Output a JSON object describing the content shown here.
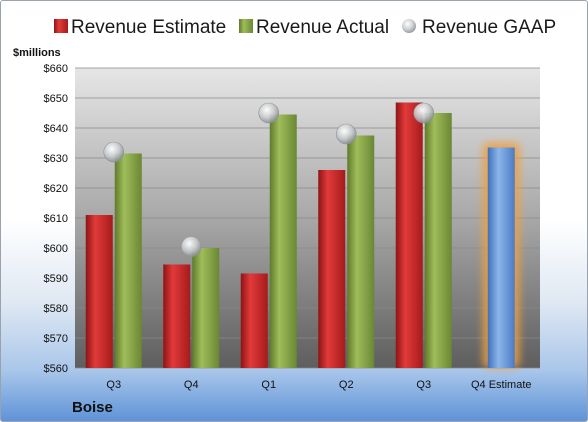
{
  "chart_data": {
    "type": "bar",
    "unit_label": "$millions",
    "categories": [
      "Q3",
      "Q4",
      "Q1",
      "Q2",
      "Q3",
      "Q4 Estimate"
    ],
    "series": [
      {
        "name": "Revenue Estimate",
        "kind": "bar",
        "color": "#d42a2a",
        "values": [
          611,
          594.5,
          591.5,
          626,
          648.5,
          null
        ]
      },
      {
        "name": "Revenue Actual",
        "kind": "bar",
        "color": "#8caa4b",
        "values": [
          631.5,
          600,
          644.5,
          637.5,
          645,
          633.5
        ]
      },
      {
        "name": "Revenue GAAP",
        "kind": "marker",
        "color": "#b8bcc2",
        "values": [
          632,
          600.5,
          645,
          638,
          645,
          null
        ]
      }
    ],
    "highlight": {
      "category_index": 5,
      "color": "#6fa0dc",
      "glow": "#f0a040"
    },
    "ylim": [
      560,
      660
    ],
    "yticks": [
      560,
      570,
      580,
      590,
      600,
      610,
      620,
      630,
      640,
      650,
      660
    ],
    "ytick_labels": [
      "$560",
      "$570",
      "$580",
      "$590",
      "$600",
      "$610",
      "$620",
      "$630",
      "$640",
      "$650",
      "$660"
    ],
    "legend_position": "top",
    "grid": true
  },
  "footer": {
    "company": "Boise"
  }
}
